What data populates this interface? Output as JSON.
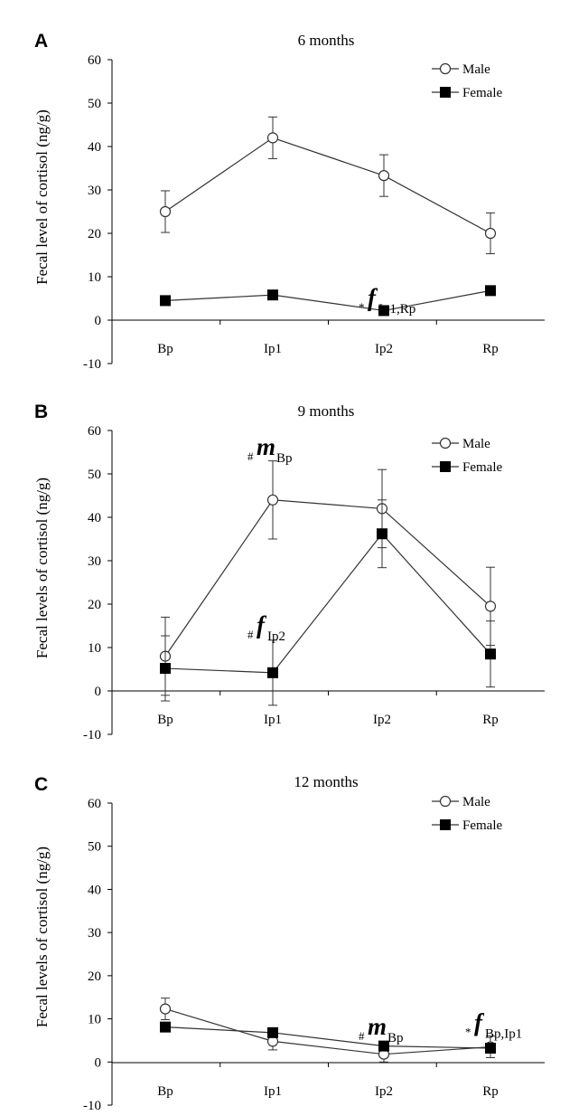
{
  "chart_data": [
    {
      "panel": "A",
      "type": "line",
      "title": "6 months",
      "ylabel": "Fecal level  of cortisol (ng/g)",
      "xlabel": "",
      "categories": [
        "Bp",
        "Ip1",
        "Ip2",
        "Rp"
      ],
      "ylim": [
        -10,
        60
      ],
      "yticks": [
        "60",
        "50",
        "40",
        "30",
        "20",
        "10",
        "0",
        "-10"
      ],
      "grid": false,
      "legend_position": "top-right",
      "series": [
        {
          "name": "Male",
          "marker": "open-circle",
          "values": [
            25,
            42,
            33.3,
            20
          ],
          "errors": [
            4.8,
            4.8,
            4.8,
            4.7
          ]
        },
        {
          "name": "Female",
          "marker": "filled-square",
          "values": [
            4.5,
            5.8,
            2.2,
            6.8
          ],
          "errors": [
            0,
            0,
            0,
            0
          ]
        }
      ],
      "annotations": [
        {
          "symbol": "*",
          "letter": "f",
          "subscript": "Ip1,Rp",
          "category": "Ip2",
          "y": 2.5
        }
      ]
    },
    {
      "panel": "B",
      "type": "line",
      "title": "9 months",
      "ylabel": "Fecal levels  of cortisol (ng/g)",
      "xlabel": "",
      "categories": [
        "Bp",
        "Ip1",
        "Ip2",
        "Rp"
      ],
      "ylim": [
        -10,
        60
      ],
      "yticks": [
        "60",
        "50",
        "40",
        "30",
        "20",
        "10",
        "0",
        "-10"
      ],
      "grid": false,
      "legend_position": "top-right",
      "series": [
        {
          "name": "Male",
          "marker": "open-circle",
          "values": [
            8,
            44,
            42,
            19.5
          ],
          "errors": [
            9,
            9,
            9,
            9
          ]
        },
        {
          "name": "Female",
          "marker": "filled-square",
          "values": [
            5.2,
            4.2,
            36.2,
            8.5
          ],
          "errors": [
            7.5,
            7.5,
            7.8,
            7.6
          ]
        }
      ],
      "annotations": [
        {
          "symbol": "#",
          "letter": "m",
          "subscript": "Bp",
          "category": "Ip1",
          "y": 53.5
        },
        {
          "symbol": "#",
          "letter": "f",
          "subscript": "Ip2",
          "category": "Ip1",
          "y": 12.5
        }
      ]
    },
    {
      "panel": "C",
      "type": "line",
      "title": "12 months",
      "ylabel": "Fecal levels of cortisol (ng/g)",
      "xlabel": "",
      "categories": [
        "Bp",
        "Ip1",
        "Ip2",
        "Rp"
      ],
      "ylim": [
        -10,
        60
      ],
      "yticks": [
        "60",
        "50",
        "40",
        "30",
        "20",
        "10",
        "0",
        "-10"
      ],
      "grid": false,
      "legend_position": "top-right",
      "series": [
        {
          "name": "Male",
          "marker": "open-circle",
          "values": [
            12.3,
            4.8,
            1.8,
            3.5
          ],
          "errors": [
            2.5,
            2,
            1.8,
            2.5
          ]
        },
        {
          "name": "Female",
          "marker": "filled-square",
          "values": [
            8.1,
            6.8,
            3.7,
            3.2
          ],
          "errors": [
            0,
            0,
            0,
            0
          ]
        }
      ],
      "annotations": [
        {
          "symbol": "#",
          "letter": "m",
          "subscript": "Bp",
          "category": "Ip2",
          "y": 5.5
        },
        {
          "symbol": "*",
          "letter": "f",
          "subscript": "Bp,Ip1",
          "category": "Rp",
          "y": 6.5
        }
      ]
    }
  ],
  "colors": {
    "line": "#333333",
    "marker": "#000000",
    "background": "#ffffff"
  }
}
